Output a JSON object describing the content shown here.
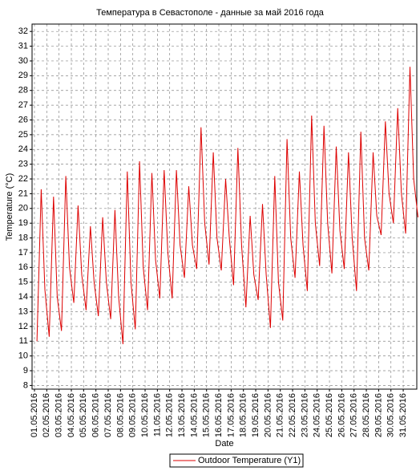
{
  "chart_data": {
    "type": "line",
    "title": "Температура в Севастополе - данные за май 2016 года",
    "x_label": "Date",
    "y_label": "Temperature (°C)",
    "x": [
      1.2,
      1.55,
      1.85,
      2.2,
      2.55,
      2.85,
      3.2,
      3.55,
      3.85,
      4.2,
      4.55,
      4.85,
      5.2,
      5.55,
      5.85,
      6.2,
      6.55,
      6.85,
      7.2,
      7.55,
      7.85,
      8.2,
      8.55,
      8.85,
      9.2,
      9.55,
      9.85,
      10.2,
      10.55,
      10.85,
      11.2,
      11.55,
      11.85,
      12.2,
      12.55,
      12.85,
      13.2,
      13.55,
      13.85,
      14.2,
      14.55,
      14.85,
      15.2,
      15.55,
      15.85,
      16.2,
      16.55,
      16.85,
      17.2,
      17.55,
      17.85,
      18.2,
      18.55,
      18.85,
      19.2,
      19.55,
      19.85,
      20.2,
      20.55,
      20.85,
      21.2,
      21.55,
      21.85,
      22.2,
      22.55,
      22.85,
      23.2,
      23.55,
      23.85,
      24.2,
      24.55,
      24.85,
      25.2,
      25.55,
      25.85,
      26.2,
      26.55,
      26.85,
      27.2,
      27.55,
      27.85,
      28.2,
      28.55,
      28.85,
      29.2,
      29.55,
      29.85,
      30.2,
      30.55,
      30.85,
      31.2,
      31.55,
      31.85,
      32.2
    ],
    "series": [
      {
        "name": "Outdoor Temperature (Y1)",
        "color": "#dd0000",
        "values": [
          11.0,
          21.3,
          14.5,
          11.3,
          20.8,
          14.0,
          11.7,
          22.2,
          16.0,
          13.6,
          20.2,
          15.5,
          13.1,
          18.8,
          15.0,
          12.7,
          19.4,
          15.0,
          12.5,
          19.9,
          14.0,
          10.8,
          22.5,
          15.0,
          11.8,
          23.2,
          16.0,
          13.1,
          22.4,
          16.5,
          13.9,
          22.6,
          17.0,
          13.9,
          22.6,
          17.5,
          15.3,
          21.5,
          17.5,
          15.9,
          25.5,
          19.0,
          16.2,
          23.8,
          18.0,
          15.8,
          22.0,
          18.0,
          14.8,
          24.1,
          17.5,
          13.3,
          19.5,
          15.5,
          13.8,
          20.3,
          15.5,
          11.9,
          22.2,
          15.0,
          12.4,
          24.7,
          18.0,
          15.3,
          22.5,
          17.5,
          14.4,
          26.3,
          19.0,
          16.1,
          25.6,
          19.0,
          15.6,
          24.2,
          18.5,
          15.9,
          23.8,
          18.0,
          14.4,
          25.2,
          18.0,
          15.8,
          23.8,
          19.5,
          18.2,
          25.9,
          21.0,
          19.0,
          26.8,
          21.0,
          18.3,
          29.6,
          22.0,
          19.4
        ]
      }
    ],
    "xlim": [
      1,
      32.3
    ],
    "xticks": [
      {
        "value": 1,
        "label": "01.05.2016"
      },
      {
        "value": 2,
        "label": "02.05.2016"
      },
      {
        "value": 3,
        "label": "03.05.2016"
      },
      {
        "value": 4,
        "label": "04.05.2016"
      },
      {
        "value": 5,
        "label": "05.05.2016"
      },
      {
        "value": 6,
        "label": "06.05.2016"
      },
      {
        "value": 7,
        "label": "07.05.2016"
      },
      {
        "value": 8,
        "label": "08.05.2016"
      },
      {
        "value": 9,
        "label": "09.05.2016"
      },
      {
        "value": 10,
        "label": "10.05.2016"
      },
      {
        "value": 11,
        "label": "11.05.2016"
      },
      {
        "value": 12,
        "label": "12.05.2016"
      },
      {
        "value": 13,
        "label": "13.05.2016"
      },
      {
        "value": 14,
        "label": "14.05.2016"
      },
      {
        "value": 15,
        "label": "15.05.2016"
      },
      {
        "value": 16,
        "label": "16.05.2016"
      },
      {
        "value": 17,
        "label": "17.05.2016"
      },
      {
        "value": 18,
        "label": "18.05.2016"
      },
      {
        "value": 19,
        "label": "19.05.2016"
      },
      {
        "value": 20,
        "label": "20.05.2016"
      },
      {
        "value": 21,
        "label": "21.05.2016"
      },
      {
        "value": 22,
        "label": "22.05.2016"
      },
      {
        "value": 23,
        "label": "23.05.2016"
      },
      {
        "value": 24,
        "label": "24.05.2016"
      },
      {
        "value": 25,
        "label": "25.05.2016"
      },
      {
        "value": 26,
        "label": "26.05.2016"
      },
      {
        "value": 27,
        "label": "27.05.2016"
      },
      {
        "value": 28,
        "label": "28.05.2016"
      },
      {
        "value": 29,
        "label": "29.05.2016"
      },
      {
        "value": 30,
        "label": "30.05.2016"
      },
      {
        "value": 31,
        "label": "31.05.2016"
      }
    ],
    "ylim": [
      7.75,
      32.5
    ],
    "yticks": [
      8,
      9,
      10,
      11,
      12,
      13,
      14,
      15,
      16,
      17,
      18,
      19,
      20,
      21,
      22,
      23,
      24,
      25,
      26,
      27,
      28,
      29,
      30,
      31,
      32
    ],
    "grid": true
  }
}
